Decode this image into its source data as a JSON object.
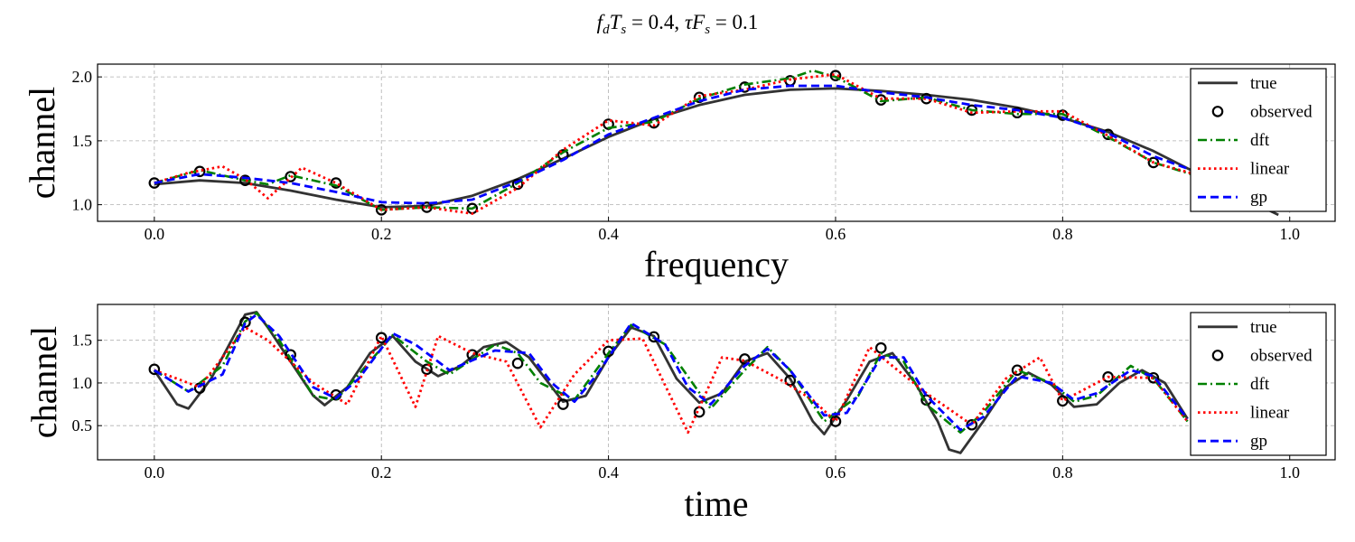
{
  "figure": {
    "title_parts": [
      "f",
      "d",
      "T",
      "s",
      " = 0.4, ",
      "τ",
      "F",
      "s",
      " = 0.1"
    ]
  },
  "chart_data": [
    {
      "type": "line",
      "xlabel": "frequency",
      "ylabel": "channel",
      "xlim": [
        -0.05,
        1.04
      ],
      "ylim": [
        0.87,
        2.1
      ],
      "xticks": [
        0.0,
        0.2,
        0.4,
        0.6,
        0.8,
        1.0
      ],
      "xtick_labels": [
        "0.0",
        "0.2",
        "0.4",
        "0.6",
        "0.8",
        "1.0"
      ],
      "yticks": [
        1.0,
        1.5,
        2.0
      ],
      "ytick_labels": [
        "1.0",
        "1.5",
        "2.0"
      ],
      "grid": true,
      "legend": "top-right",
      "series": [
        {
          "name": "true",
          "style": "solid",
          "color": "#333333",
          "x": [
            0.0,
            0.04,
            0.08,
            0.12,
            0.16,
            0.2,
            0.24,
            0.28,
            0.32,
            0.36,
            0.4,
            0.44,
            0.48,
            0.52,
            0.56,
            0.6,
            0.64,
            0.68,
            0.72,
            0.76,
            0.8,
            0.84,
            0.88,
            0.92,
            0.96,
            0.99
          ],
          "y": [
            1.16,
            1.19,
            1.17,
            1.11,
            1.04,
            0.98,
            0.99,
            1.07,
            1.2,
            1.36,
            1.53,
            1.67,
            1.78,
            1.86,
            1.9,
            1.91,
            1.89,
            1.86,
            1.82,
            1.76,
            1.68,
            1.57,
            1.42,
            1.24,
            1.05,
            0.92
          ]
        },
        {
          "name": "observed",
          "style": "marker",
          "color": "#000000",
          "x": [
            0.0,
            0.04,
            0.08,
            0.12,
            0.16,
            0.2,
            0.24,
            0.28,
            0.32,
            0.36,
            0.4,
            0.44,
            0.48,
            0.52,
            0.56,
            0.6,
            0.64,
            0.68,
            0.72,
            0.76,
            0.8,
            0.84,
            0.88
          ],
          "y": [
            1.17,
            1.26,
            1.19,
            1.22,
            1.17,
            0.96,
            0.98,
            0.97,
            1.16,
            1.39,
            1.63,
            1.64,
            1.84,
            1.92,
            1.97,
            2.01,
            1.82,
            1.83,
            1.74,
            1.72,
            1.7,
            1.55,
            1.33
          ]
        },
        {
          "name": "dft",
          "style": "dashdot",
          "color": "#008000",
          "x": [
            0.0,
            0.04,
            0.08,
            0.1,
            0.12,
            0.16,
            0.2,
            0.24,
            0.28,
            0.32,
            0.36,
            0.4,
            0.44,
            0.48,
            0.52,
            0.56,
            0.58,
            0.6,
            0.64,
            0.68,
            0.72,
            0.76,
            0.8,
            0.84,
            0.88,
            0.92
          ],
          "y": [
            1.17,
            1.27,
            1.19,
            1.16,
            1.23,
            1.15,
            0.96,
            0.98,
            0.97,
            1.17,
            1.41,
            1.6,
            1.65,
            1.83,
            1.94,
            1.99,
            2.05,
            2.0,
            1.81,
            1.84,
            1.74,
            1.71,
            1.71,
            1.53,
            1.33,
            1.22
          ]
        },
        {
          "name": "linear",
          "style": "dotted",
          "color": "#ff0000",
          "x": [
            0.0,
            0.03,
            0.06,
            0.08,
            0.1,
            0.13,
            0.16,
            0.2,
            0.24,
            0.28,
            0.32,
            0.36,
            0.4,
            0.44,
            0.48,
            0.52,
            0.56,
            0.6,
            0.64,
            0.68,
            0.72,
            0.76,
            0.8,
            0.84,
            0.88,
            0.92
          ],
          "y": [
            1.17,
            1.25,
            1.3,
            1.2,
            1.05,
            1.29,
            1.17,
            0.96,
            0.98,
            0.93,
            1.13,
            1.43,
            1.66,
            1.62,
            1.85,
            1.9,
            1.98,
            2.02,
            1.83,
            1.83,
            1.72,
            1.73,
            1.73,
            1.54,
            1.33,
            1.23
          ]
        },
        {
          "name": "gp",
          "style": "dashed",
          "color": "#0000ff",
          "x": [
            0.0,
            0.04,
            0.08,
            0.12,
            0.16,
            0.2,
            0.24,
            0.28,
            0.32,
            0.36,
            0.4,
            0.44,
            0.48,
            0.52,
            0.56,
            0.6,
            0.64,
            0.68,
            0.72,
            0.76,
            0.8,
            0.84,
            0.88,
            0.92
          ],
          "y": [
            1.17,
            1.24,
            1.21,
            1.17,
            1.1,
            1.02,
            1.01,
            1.04,
            1.18,
            1.35,
            1.55,
            1.68,
            1.81,
            1.9,
            1.93,
            1.93,
            1.88,
            1.84,
            1.78,
            1.74,
            1.68,
            1.56,
            1.38,
            1.25
          ]
        }
      ]
    },
    {
      "type": "line",
      "xlabel": "time",
      "ylabel": "channel",
      "xlim": [
        -0.05,
        1.04
      ],
      "ylim": [
        0.1,
        1.92
      ],
      "xticks": [
        0.0,
        0.2,
        0.4,
        0.6,
        0.8,
        1.0
      ],
      "xtick_labels": [
        "0.0",
        "0.2",
        "0.4",
        "0.6",
        "0.8",
        "1.0"
      ],
      "yticks": [
        0.5,
        1.0,
        1.5
      ],
      "ytick_labels": [
        "0.5",
        "1.0",
        "1.5"
      ],
      "grid": true,
      "legend": "top-right",
      "series": [
        {
          "name": "true",
          "style": "solid",
          "color": "#333333",
          "x": [
            0.0,
            0.02,
            0.03,
            0.05,
            0.07,
            0.08,
            0.09,
            0.1,
            0.12,
            0.14,
            0.15,
            0.17,
            0.19,
            0.21,
            0.23,
            0.25,
            0.27,
            0.29,
            0.31,
            0.33,
            0.36,
            0.38,
            0.4,
            0.42,
            0.44,
            0.46,
            0.48,
            0.5,
            0.52,
            0.54,
            0.56,
            0.58,
            0.59,
            0.61,
            0.63,
            0.65,
            0.67,
            0.69,
            0.7,
            0.71,
            0.73,
            0.75,
            0.77,
            0.79,
            0.81,
            0.83,
            0.85,
            0.87,
            0.89,
            0.91
          ],
          "y": [
            1.15,
            0.75,
            0.7,
            1.05,
            1.55,
            1.8,
            1.83,
            1.65,
            1.25,
            0.85,
            0.74,
            0.95,
            1.35,
            1.55,
            1.25,
            1.08,
            1.2,
            1.42,
            1.48,
            1.3,
            0.78,
            0.85,
            1.3,
            1.65,
            1.55,
            1.05,
            0.77,
            0.88,
            1.25,
            1.35,
            1.05,
            0.55,
            0.4,
            0.8,
            1.25,
            1.35,
            1.0,
            0.55,
            0.22,
            0.18,
            0.55,
            0.95,
            1.12,
            0.98,
            0.72,
            0.75,
            1.0,
            1.15,
            1.0,
            0.58
          ]
        },
        {
          "name": "observed",
          "style": "marker",
          "color": "#000000",
          "x": [
            0.0,
            0.04,
            0.08,
            0.12,
            0.16,
            0.2,
            0.24,
            0.28,
            0.32,
            0.36,
            0.4,
            0.44,
            0.48,
            0.52,
            0.56,
            0.6,
            0.64,
            0.68,
            0.72,
            0.76,
            0.8,
            0.84,
            0.88
          ],
          "y": [
            1.16,
            0.94,
            1.71,
            1.33,
            0.86,
            1.53,
            1.16,
            1.33,
            1.23,
            0.75,
            1.37,
            1.54,
            0.66,
            1.28,
            1.03,
            0.55,
            1.41,
            0.8,
            0.51,
            1.15,
            0.79,
            1.07,
            1.06
          ]
        },
        {
          "name": "dft",
          "style": "dashdot",
          "color": "#008000",
          "x": [
            0.0,
            0.03,
            0.06,
            0.08,
            0.09,
            0.11,
            0.14,
            0.16,
            0.18,
            0.21,
            0.24,
            0.26,
            0.3,
            0.32,
            0.34,
            0.37,
            0.4,
            0.42,
            0.45,
            0.49,
            0.52,
            0.54,
            0.56,
            0.59,
            0.62,
            0.64,
            0.66,
            0.68,
            0.71,
            0.73,
            0.76,
            0.79,
            0.81,
            0.83,
            0.86,
            0.88,
            0.91
          ],
          "y": [
            1.15,
            0.9,
            1.2,
            1.72,
            1.82,
            1.5,
            0.85,
            0.8,
            1.1,
            1.56,
            1.25,
            1.1,
            1.45,
            1.35,
            1.0,
            0.8,
            1.35,
            1.68,
            1.45,
            0.7,
            1.15,
            1.42,
            1.15,
            0.55,
            0.85,
            1.35,
            1.25,
            0.75,
            0.42,
            0.65,
            1.15,
            1.0,
            0.78,
            0.85,
            1.2,
            1.05,
            0.55
          ]
        },
        {
          "name": "linear",
          "style": "dotted",
          "color": "#ff0000",
          "x": [
            0.0,
            0.04,
            0.06,
            0.08,
            0.1,
            0.14,
            0.17,
            0.2,
            0.23,
            0.25,
            0.28,
            0.31,
            0.34,
            0.37,
            0.4,
            0.43,
            0.47,
            0.5,
            0.52,
            0.55,
            0.58,
            0.6,
            0.63,
            0.65,
            0.68,
            0.72,
            0.75,
            0.78,
            0.8,
            0.84,
            0.88,
            0.91
          ],
          "y": [
            1.15,
            0.95,
            1.3,
            1.65,
            1.5,
            1.0,
            0.75,
            1.55,
            0.72,
            1.55,
            1.35,
            1.25,
            0.48,
            1.1,
            1.5,
            1.52,
            0.42,
            1.3,
            1.26,
            1.05,
            0.8,
            0.55,
            1.42,
            1.2,
            0.88,
            0.51,
            1.05,
            1.3,
            0.79,
            1.07,
            1.06,
            0.55
          ]
        },
        {
          "name": "gp",
          "style": "dashed",
          "color": "#0000ff",
          "x": [
            0.0,
            0.03,
            0.06,
            0.08,
            0.09,
            0.11,
            0.14,
            0.16,
            0.18,
            0.21,
            0.23,
            0.26,
            0.3,
            0.33,
            0.35,
            0.37,
            0.39,
            0.42,
            0.45,
            0.47,
            0.49,
            0.52,
            0.54,
            0.56,
            0.59,
            0.61,
            0.64,
            0.66,
            0.68,
            0.71,
            0.73,
            0.76,
            0.79,
            0.81,
            0.83,
            0.86,
            0.88,
            0.91
          ],
          "y": [
            1.15,
            0.9,
            1.1,
            1.7,
            1.8,
            1.55,
            0.95,
            0.82,
            1.05,
            1.58,
            1.45,
            1.15,
            1.38,
            1.35,
            1.0,
            0.78,
            1.1,
            1.7,
            1.45,
            0.95,
            0.75,
            1.2,
            1.4,
            1.15,
            0.62,
            0.65,
            1.3,
            1.3,
            0.85,
            0.45,
            0.6,
            1.08,
            1.0,
            0.8,
            0.88,
            1.15,
            1.08,
            0.58
          ]
        }
      ]
    }
  ]
}
